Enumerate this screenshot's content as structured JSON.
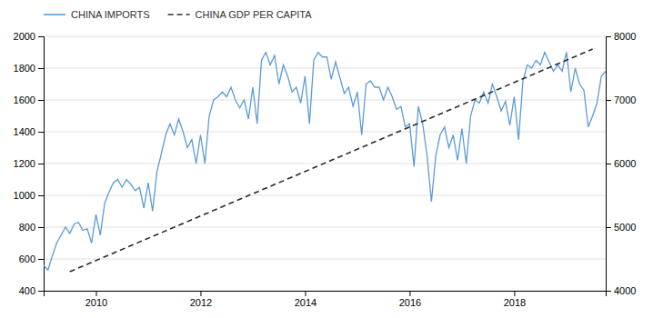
{
  "chart_data": {
    "type": "line",
    "xlim": [
      2009.0,
      2019.75
    ],
    "xticks": [
      2010,
      2012,
      2014,
      2016,
      2018
    ],
    "ylim": [
      400,
      2000
    ],
    "yticks": [
      400,
      600,
      800,
      1000,
      1200,
      1400,
      1600,
      1800,
      2000
    ],
    "y2lim": [
      4000,
      8000
    ],
    "y2ticks": [
      4000,
      5000,
      6000,
      7000,
      8000
    ],
    "grid": true,
    "legend": "top-left",
    "series": [
      {
        "name": "CHINA IMPORTS",
        "color": "#5b9bd5",
        "line_style": "solid",
        "axis": "y",
        "x": [
          2009,
          2009.0833333333,
          2009.1666666667,
          2009.25,
          2009.3333333333,
          2009.4166666667,
          2009.5,
          2009.5833333333,
          2009.6666666667,
          2009.75,
          2009.8333333333,
          2009.9166666667,
          2010,
          2010.0833333333,
          2010.1666666667,
          2010.25,
          2010.3333333333,
          2010.4166666667,
          2010.5,
          2010.5833333333,
          2010.6666666667,
          2010.75,
          2010.8333333333,
          2010.9166666667,
          2011,
          2011.0833333333,
          2011.1666666667,
          2011.25,
          2011.3333333333,
          2011.4166666667,
          2011.5,
          2011.5833333333,
          2011.6666666667,
          2011.75,
          2011.8333333333,
          2011.9166666667,
          2012,
          2012.0833333333,
          2012.1666666667,
          2012.25,
          2012.3333333333,
          2012.4166666667,
          2012.5,
          2012.5833333333,
          2012.6666666667,
          2012.75,
          2012.8333333333,
          2012.9166666667,
          2013,
          2013.0833333333,
          2013.1666666667,
          2013.25,
          2013.3333333333,
          2013.4166666667,
          2013.5,
          2013.5833333333,
          2013.6666666667,
          2013.75,
          2013.8333333333,
          2013.9166666667,
          2014,
          2014.0833333333,
          2014.1666666667,
          2014.25,
          2014.3333333333,
          2014.4166666667,
          2014.5,
          2014.5833333333,
          2014.6666666667,
          2014.75,
          2014.8333333333,
          2014.9166666667,
          2015,
          2015.0833333333,
          2015.1666666667,
          2015.25,
          2015.3333333333,
          2015.4166666667,
          2015.5,
          2015.5833333333,
          2015.6666666667,
          2015.75,
          2015.8333333333,
          2015.9166666667,
          2016,
          2016.0833333333,
          2016.1666666667,
          2016.25,
          2016.3333333333,
          2016.4166666667,
          2016.5,
          2016.5833333333,
          2016.6666666667,
          2016.75,
          2016.8333333333,
          2016.9166666667,
          2017,
          2017.0833333333,
          2017.1666666667,
          2017.25,
          2017.3333333333,
          2017.4166666667,
          2017.5,
          2017.5833333333,
          2017.6666666667,
          2017.75,
          2017.8333333333,
          2017.9166666667,
          2018,
          2018.0833333333,
          2018.1666666667,
          2018.25,
          2018.3333333333,
          2018.4166666667,
          2018.5,
          2018.5833333333,
          2018.6666666667,
          2018.75,
          2018.8333333333,
          2018.9166666667,
          2019,
          2019.0833333333,
          2019.1666666667,
          2019.25,
          2019.3333333333,
          2019.4166666667,
          2019.5,
          2019.5833333333,
          2019.6666666667,
          2019.75
        ],
        "values": [
          560,
          530,
          620,
          700,
          750,
          800,
          760,
          820,
          830,
          780,
          790,
          700,
          880,
          750,
          950,
          1020,
          1080,
          1100,
          1050,
          1100,
          1070,
          1030,
          1050,
          920,
          1080,
          900,
          1150,
          1260,
          1380,
          1450,
          1380,
          1480,
          1400,
          1300,
          1350,
          1200,
          1380,
          1200,
          1500,
          1600,
          1620,
          1650,
          1620,
          1680,
          1600,
          1550,
          1600,
          1480,
          1680,
          1450,
          1850,
          1900,
          1820,
          1880,
          1700,
          1820,
          1750,
          1650,
          1680,
          1580,
          1750,
          1450,
          1850,
          1900,
          1870,
          1870,
          1730,
          1840,
          1740,
          1640,
          1680,
          1560,
          1650,
          1380,
          1700,
          1720,
          1680,
          1680,
          1600,
          1680,
          1620,
          1540,
          1560,
          1430,
          1450,
          1180,
          1560,
          1450,
          1250,
          960,
          1250,
          1380,
          1430,
          1300,
          1380,
          1220,
          1420,
          1200,
          1500,
          1600,
          1580,
          1650,
          1580,
          1700,
          1620,
          1530,
          1590,
          1440,
          1620,
          1350,
          1720,
          1820,
          1800,
          1850,
          1820,
          1900,
          1840,
          1780,
          1820,
          1780,
          1900,
          1650,
          1800,
          1700,
          1660,
          1430,
          1500,
          1580,
          1750,
          1780
        ]
      },
      {
        "name": "CHINA GDP PER CAPITA",
        "color": "#2b2b2b",
        "line_style": "dashed",
        "axis": "y2",
        "x": [
          2009.5,
          2019.5
        ],
        "values": [
          4300,
          7800
        ]
      }
    ]
  }
}
